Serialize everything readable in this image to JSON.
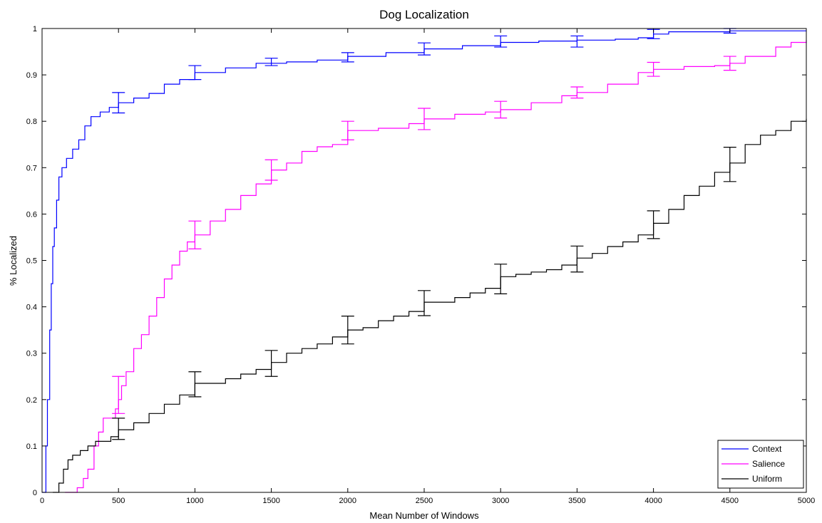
{
  "chart_data": {
    "type": "line",
    "title": "Dog Localization",
    "xlabel": "Mean Number of Windows",
    "ylabel": "% Localized",
    "xlim": [
      0,
      5000
    ],
    "ylim": [
      0,
      1
    ],
    "xticks": [
      "0",
      "500",
      "1000",
      "1500",
      "2000",
      "2500",
      "3000",
      "3500",
      "4000",
      "4500",
      "5000"
    ],
    "yticks": [
      "0",
      "0.1",
      "0.2",
      "0.3",
      "0.4",
      "0.5",
      "0.6",
      "0.7",
      "0.8",
      "0.9",
      "1"
    ],
    "grid": false,
    "legend_position": "bottom-right",
    "series": [
      {
        "name": "Context",
        "color": "#0000ff",
        "points": [
          [
            0,
            0
          ],
          [
            20,
            0
          ],
          [
            25,
            0.1
          ],
          [
            35,
            0.2
          ],
          [
            50,
            0.35
          ],
          [
            60,
            0.45
          ],
          [
            70,
            0.53
          ],
          [
            80,
            0.57
          ],
          [
            95,
            0.63
          ],
          [
            110,
            0.68
          ],
          [
            130,
            0.7
          ],
          [
            160,
            0.72
          ],
          [
            200,
            0.74
          ],
          [
            240,
            0.76
          ],
          [
            280,
            0.79
          ],
          [
            320,
            0.81
          ],
          [
            380,
            0.82
          ],
          [
            440,
            0.83
          ],
          [
            500,
            0.84
          ],
          [
            600,
            0.85
          ],
          [
            700,
            0.86
          ],
          [
            800,
            0.88
          ],
          [
            900,
            0.89
          ],
          [
            1000,
            0.905
          ],
          [
            1200,
            0.915
          ],
          [
            1400,
            0.925
          ],
          [
            1600,
            0.928
          ],
          [
            1800,
            0.932
          ],
          [
            2000,
            0.94
          ],
          [
            2250,
            0.948
          ],
          [
            2500,
            0.956
          ],
          [
            2750,
            0.963
          ],
          [
            3000,
            0.97
          ],
          [
            3250,
            0.973
          ],
          [
            3500,
            0.975
          ],
          [
            3750,
            0.977
          ],
          [
            3900,
            0.98
          ],
          [
            4000,
            0.988
          ],
          [
            4100,
            0.993
          ],
          [
            4500,
            0.995
          ],
          [
            5000,
            0.995
          ]
        ],
        "error_bars": [
          [
            500,
            0.84,
            0.022
          ],
          [
            1000,
            0.905,
            0.015
          ],
          [
            1500,
            0.928,
            0.008
          ],
          [
            2000,
            0.938,
            0.01
          ],
          [
            2500,
            0.956,
            0.013
          ],
          [
            3000,
            0.972,
            0.012
          ],
          [
            3500,
            0.972,
            0.012
          ],
          [
            4000,
            0.988,
            0.01
          ],
          [
            4500,
            0.995,
            0.005
          ]
        ]
      },
      {
        "name": "Salience",
        "color": "#ff00ff",
        "points": [
          [
            150,
            0
          ],
          [
            200,
            0
          ],
          [
            230,
            0.01
          ],
          [
            270,
            0.03
          ],
          [
            300,
            0.05
          ],
          [
            340,
            0.1
          ],
          [
            370,
            0.13
          ],
          [
            400,
            0.16
          ],
          [
            450,
            0.16
          ],
          [
            480,
            0.18
          ],
          [
            500,
            0.2
          ],
          [
            520,
            0.23
          ],
          [
            550,
            0.26
          ],
          [
            600,
            0.31
          ],
          [
            650,
            0.34
          ],
          [
            700,
            0.38
          ],
          [
            750,
            0.42
          ],
          [
            800,
            0.46
          ],
          [
            850,
            0.49
          ],
          [
            900,
            0.52
          ],
          [
            950,
            0.54
          ],
          [
            1000,
            0.555
          ],
          [
            1100,
            0.585
          ],
          [
            1200,
            0.61
          ],
          [
            1300,
            0.64
          ],
          [
            1400,
            0.665
          ],
          [
            1500,
            0.695
          ],
          [
            1600,
            0.71
          ],
          [
            1700,
            0.735
          ],
          [
            1800,
            0.745
          ],
          [
            1900,
            0.75
          ],
          [
            2000,
            0.78
          ],
          [
            2200,
            0.785
          ],
          [
            2400,
            0.795
          ],
          [
            2500,
            0.805
          ],
          [
            2700,
            0.815
          ],
          [
            2900,
            0.82
          ],
          [
            3000,
            0.825
          ],
          [
            3200,
            0.84
          ],
          [
            3400,
            0.855
          ],
          [
            3500,
            0.862
          ],
          [
            3700,
            0.88
          ],
          [
            3900,
            0.905
          ],
          [
            4000,
            0.912
          ],
          [
            4200,
            0.918
          ],
          [
            4400,
            0.92
          ],
          [
            4500,
            0.925
          ],
          [
            4600,
            0.94
          ],
          [
            4800,
            0.96
          ],
          [
            4900,
            0.97
          ],
          [
            5000,
            0.975
          ]
        ],
        "error_bars": [
          [
            500,
            0.21,
            0.04
          ],
          [
            1000,
            0.555,
            0.03
          ],
          [
            1500,
            0.695,
            0.022
          ],
          [
            2000,
            0.78,
            0.02
          ],
          [
            2500,
            0.805,
            0.023
          ],
          [
            3000,
            0.825,
            0.018
          ],
          [
            3500,
            0.862,
            0.012
          ],
          [
            4000,
            0.912,
            0.015
          ],
          [
            4500,
            0.925,
            0.015
          ]
        ]
      },
      {
        "name": "Uniform",
        "color": "#000000",
        "points": [
          [
            70,
            0
          ],
          [
            90,
            0
          ],
          [
            110,
            0.02
          ],
          [
            140,
            0.05
          ],
          [
            170,
            0.07
          ],
          [
            200,
            0.08
          ],
          [
            250,
            0.09
          ],
          [
            300,
            0.1
          ],
          [
            350,
            0.11
          ],
          [
            400,
            0.11
          ],
          [
            450,
            0.12
          ],
          [
            500,
            0.135
          ],
          [
            600,
            0.15
          ],
          [
            700,
            0.17
          ],
          [
            800,
            0.19
          ],
          [
            900,
            0.21
          ],
          [
            1000,
            0.235
          ],
          [
            1100,
            0.235
          ],
          [
            1200,
            0.245
          ],
          [
            1300,
            0.255
          ],
          [
            1400,
            0.265
          ],
          [
            1500,
            0.28
          ],
          [
            1600,
            0.3
          ],
          [
            1700,
            0.31
          ],
          [
            1800,
            0.32
          ],
          [
            1900,
            0.335
          ],
          [
            2000,
            0.35
          ],
          [
            2100,
            0.355
          ],
          [
            2200,
            0.37
          ],
          [
            2300,
            0.38
          ],
          [
            2400,
            0.39
          ],
          [
            2500,
            0.41
          ],
          [
            2600,
            0.41
          ],
          [
            2700,
            0.42
          ],
          [
            2800,
            0.43
          ],
          [
            2900,
            0.44
          ],
          [
            3000,
            0.465
          ],
          [
            3100,
            0.47
          ],
          [
            3200,
            0.475
          ],
          [
            3300,
            0.48
          ],
          [
            3400,
            0.49
          ],
          [
            3500,
            0.505
          ],
          [
            3600,
            0.515
          ],
          [
            3700,
            0.53
          ],
          [
            3800,
            0.54
          ],
          [
            3900,
            0.555
          ],
          [
            4000,
            0.58
          ],
          [
            4100,
            0.61
          ],
          [
            4200,
            0.64
          ],
          [
            4300,
            0.66
          ],
          [
            4400,
            0.69
          ],
          [
            4500,
            0.71
          ],
          [
            4600,
            0.75
          ],
          [
            4700,
            0.77
          ],
          [
            4800,
            0.78
          ],
          [
            4900,
            0.8
          ],
          [
            5000,
            0.805
          ]
        ],
        "error_bars": [
          [
            500,
            0.137,
            0.023
          ],
          [
            1000,
            0.233,
            0.027
          ],
          [
            1500,
            0.278,
            0.028
          ],
          [
            2000,
            0.35,
            0.03
          ],
          [
            2500,
            0.408,
            0.027
          ],
          [
            3000,
            0.46,
            0.032
          ],
          [
            3500,
            0.503,
            0.028
          ],
          [
            4000,
            0.577,
            0.03
          ],
          [
            4500,
            0.707,
            0.037
          ]
        ]
      }
    ]
  }
}
